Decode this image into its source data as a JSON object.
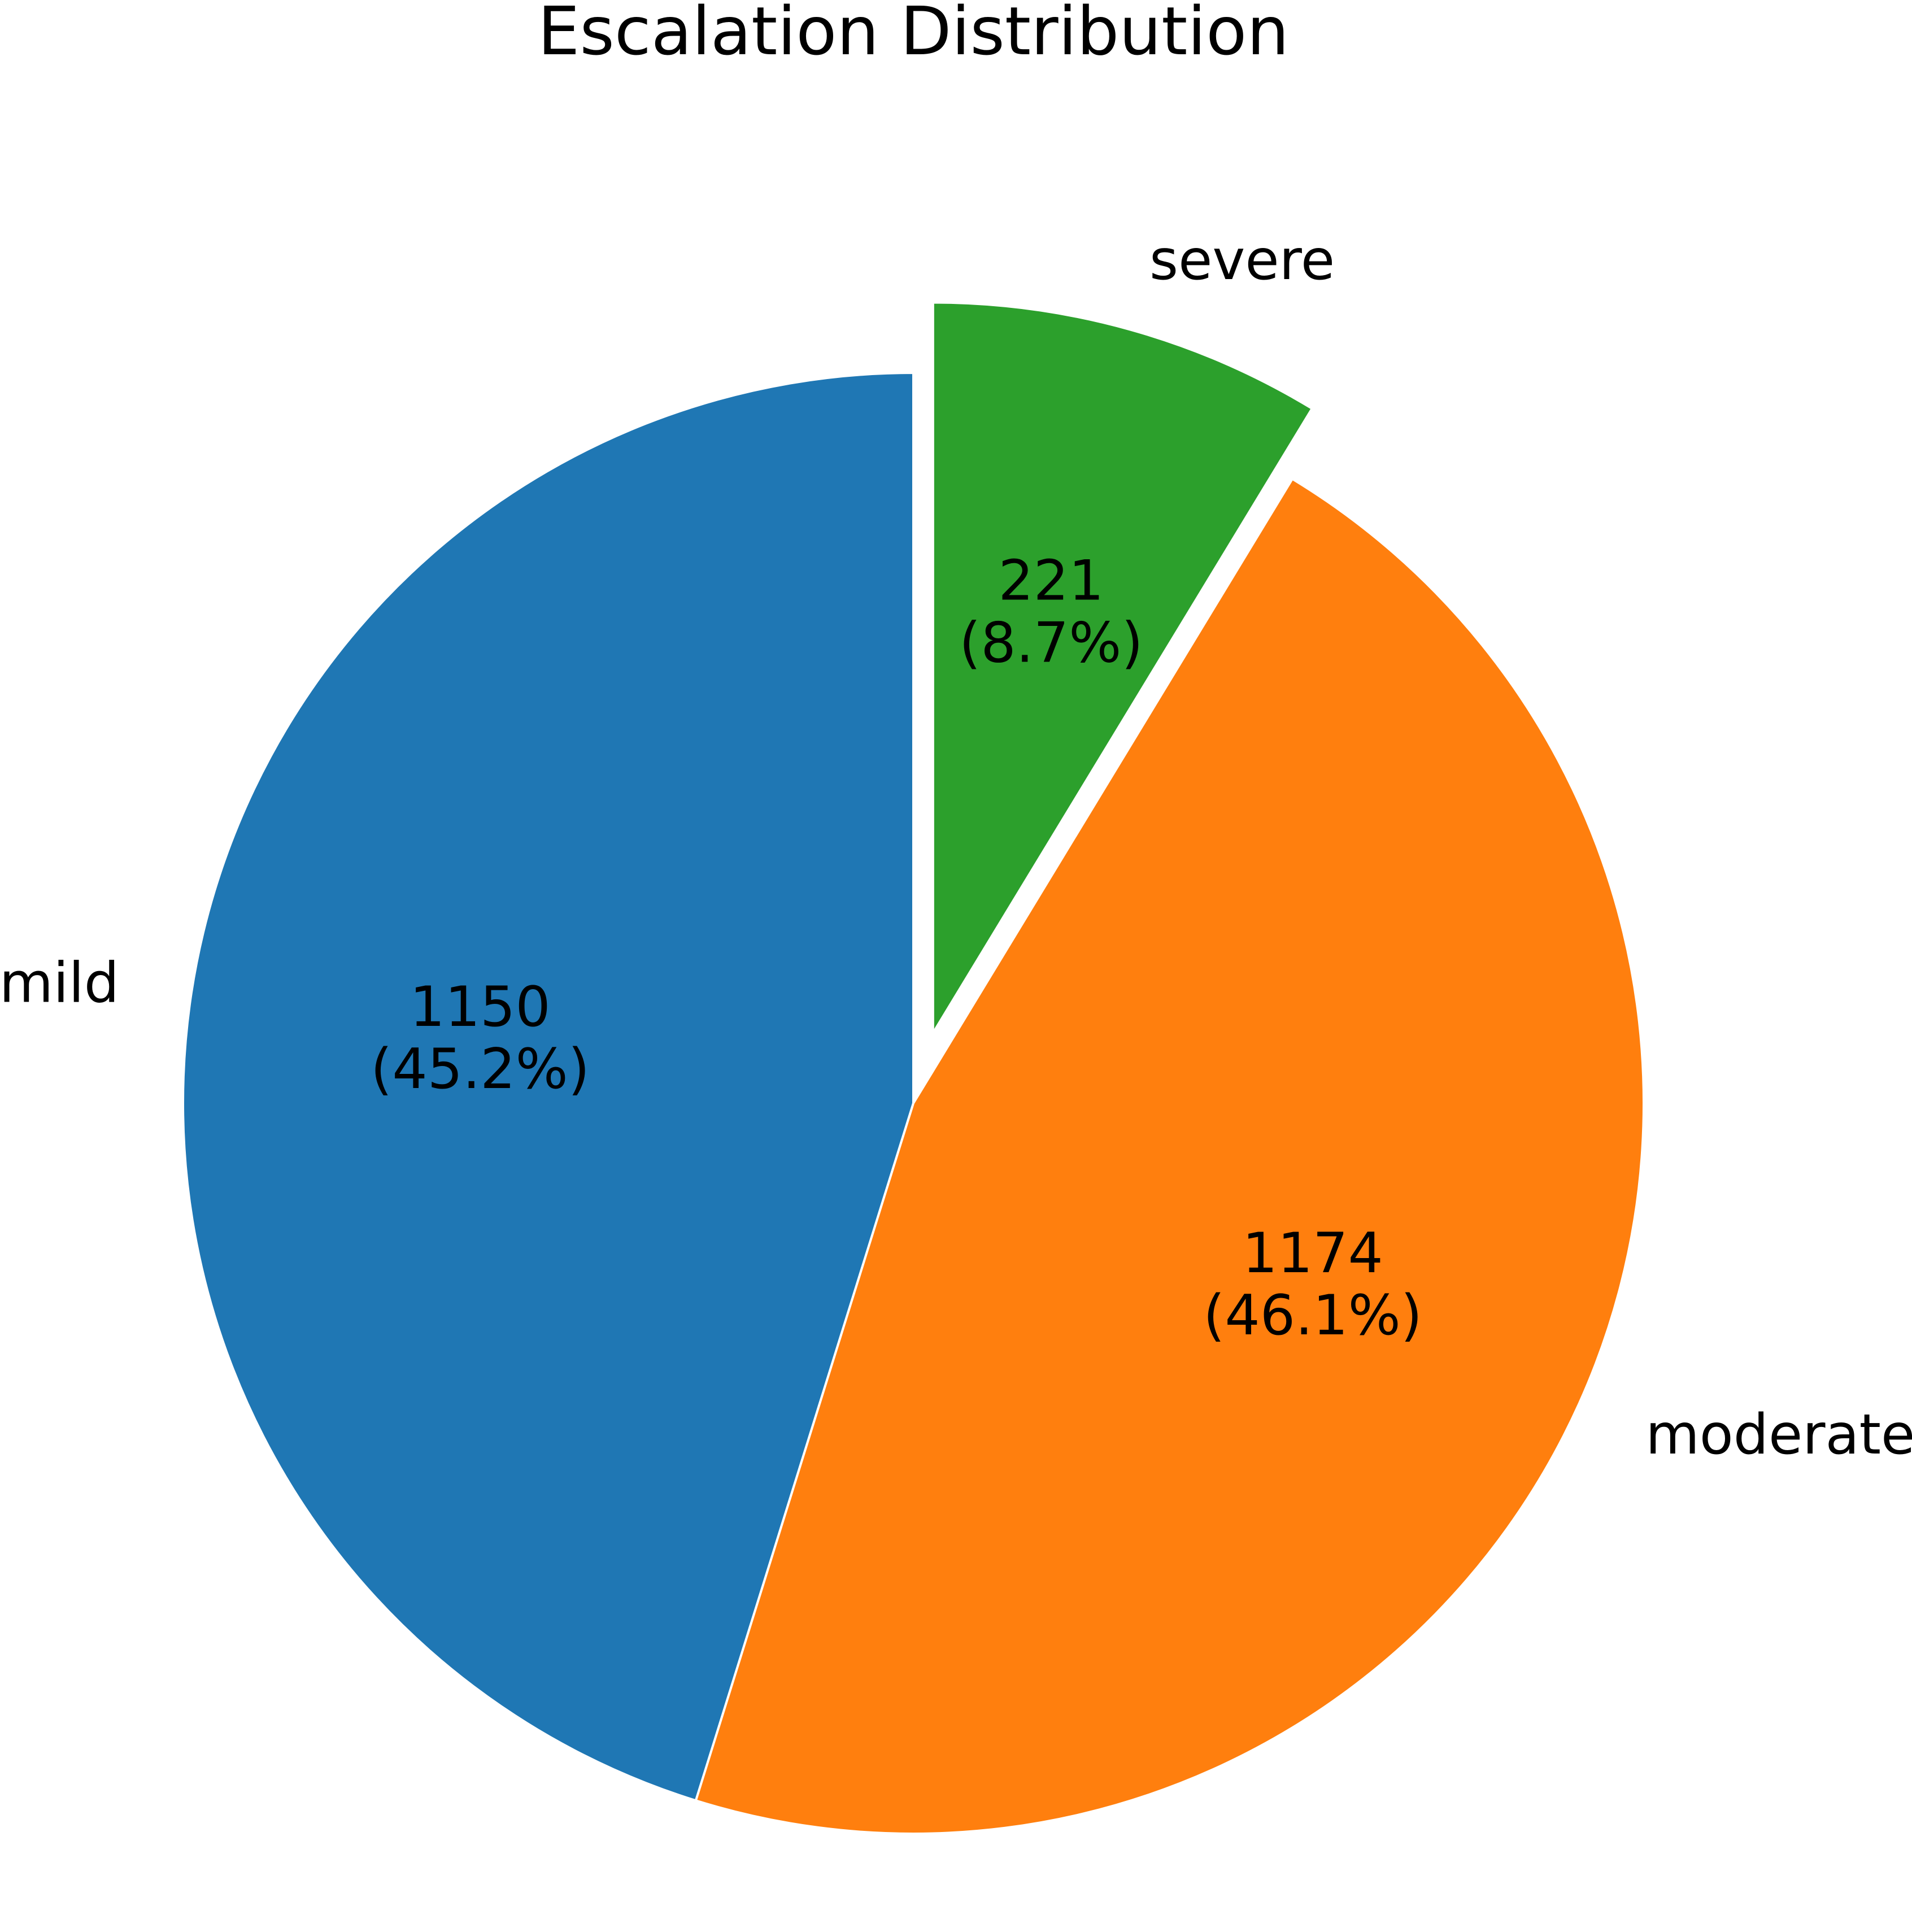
{
  "chart_data": {
    "type": "pie",
    "title": "Escalation Distribution",
    "start_angle_deg": 90,
    "direction": "counterclockwise",
    "slices": [
      {
        "label": "mild",
        "value": 1150,
        "pct_text": "(45.2%)",
        "color": "#1f77b4",
        "exploded": false
      },
      {
        "label": "moderate",
        "value": 1174,
        "pct_text": "(46.1%)",
        "color": "#ff7f0e",
        "exploded": false
      },
      {
        "label": "severe",
        "value": 221,
        "pct_text": "(8.7%)",
        "color": "#2ca02c",
        "exploded": true
      }
    ]
  }
}
